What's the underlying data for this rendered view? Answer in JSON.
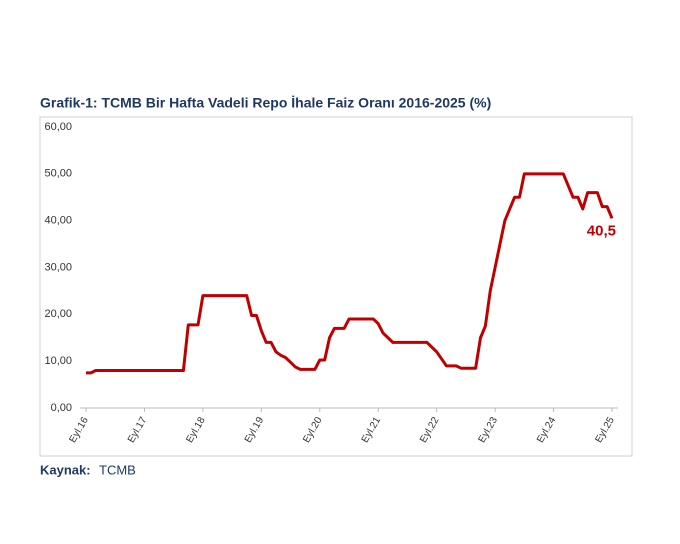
{
  "chart_data": {
    "type": "line",
    "title": "Grafik-1: TCMB Bir Hafta Vadeli Repo İhale Faiz Oranı 2016-2025 (%)",
    "source_label": "Kaynak:",
    "source": "TCMB",
    "categories": [
      "Eyl.16",
      null,
      null,
      null,
      null,
      null,
      null,
      null,
      null,
      null,
      null,
      null,
      "Eyl.17",
      null,
      null,
      null,
      null,
      null,
      null,
      null,
      null,
      null,
      null,
      null,
      "Eyl.18",
      null,
      null,
      null,
      null,
      null,
      null,
      null,
      null,
      null,
      null,
      null,
      "Eyl.19",
      null,
      null,
      null,
      null,
      null,
      null,
      null,
      null,
      null,
      null,
      null,
      "Eyl.20",
      null,
      null,
      null,
      null,
      null,
      null,
      null,
      null,
      null,
      null,
      null,
      "Eyl.21",
      null,
      null,
      null,
      null,
      null,
      null,
      null,
      null,
      null,
      null,
      null,
      "Eyl.22",
      null,
      null,
      null,
      null,
      null,
      null,
      null,
      null,
      null,
      null,
      null,
      "Eyl.23",
      null,
      null,
      null,
      null,
      null,
      null,
      null,
      null,
      null,
      null,
      null,
      "Eyl.24",
      null,
      null,
      null,
      null,
      null,
      null,
      null,
      null,
      null,
      null,
      null,
      "Eyl.25"
    ],
    "series": [
      {
        "color": "#c00000",
        "values": [
          7.5,
          7.5,
          8,
          8,
          8,
          8,
          8,
          8,
          8,
          8,
          8,
          8,
          8,
          8,
          8,
          8,
          8,
          8,
          8,
          8,
          8,
          17.75,
          17.75,
          17.75,
          24,
          24,
          24,
          24,
          24,
          24,
          24,
          24,
          24,
          24,
          19.75,
          19.75,
          16.5,
          14,
          14,
          12,
          11.25,
          10.75,
          9.75,
          8.75,
          8.25,
          8.25,
          8.25,
          8.25,
          10.25,
          10.25,
          15,
          17,
          17,
          17,
          19,
          19,
          19,
          19,
          19,
          19,
          18,
          16,
          15,
          14,
          14,
          14,
          14,
          14,
          14,
          14,
          14,
          13,
          12,
          10.5,
          9,
          9,
          9,
          8.5,
          8.5,
          8.5,
          8.5,
          15,
          17.5,
          25,
          30,
          35,
          40,
          42.5,
          45,
          45,
          50,
          50,
          50,
          50,
          50,
          50,
          50,
          50,
          50,
          47.5,
          45,
          45,
          42.5,
          46,
          46,
          46,
          43,
          43,
          40.5
        ],
        "value_labels": [
          null,
          null,
          null,
          null,
          null,
          null,
          null,
          null,
          null,
          null,
          null,
          null,
          null,
          null,
          null,
          null,
          null,
          null,
          null,
          null,
          null,
          null,
          null,
          null,
          null,
          null,
          null,
          null,
          null,
          null,
          null,
          null,
          null,
          null,
          null,
          null,
          null,
          null,
          null,
          null,
          null,
          null,
          null,
          null,
          null,
          null,
          null,
          null,
          null,
          null,
          null,
          null,
          null,
          null,
          null,
          null,
          null,
          null,
          null,
          null,
          null,
          null,
          null,
          null,
          null,
          null,
          null,
          null,
          null,
          null,
          null,
          null,
          null,
          null,
          null,
          null,
          null,
          null,
          null,
          null,
          null,
          null,
          null,
          null,
          null,
          null,
          null,
          null,
          null,
          null,
          null,
          null,
          null,
          null,
          null,
          null,
          null,
          null,
          null,
          null,
          null,
          null,
          null,
          null,
          null,
          null,
          null,
          null,
          "40,5"
        ]
      }
    ],
    "ylim": [
      0,
      60
    ],
    "yticks": [
      {
        "value": 0,
        "label": "0,00"
      },
      {
        "value": 10,
        "label": "10,00"
      },
      {
        "value": 20,
        "label": "20,00"
      },
      {
        "value": 30,
        "label": "30,00"
      },
      {
        "value": 40,
        "label": "40,00"
      },
      {
        "value": 50,
        "label": "50,00"
      },
      {
        "value": 60,
        "label": "60,00"
      }
    ],
    "grid": false
  }
}
